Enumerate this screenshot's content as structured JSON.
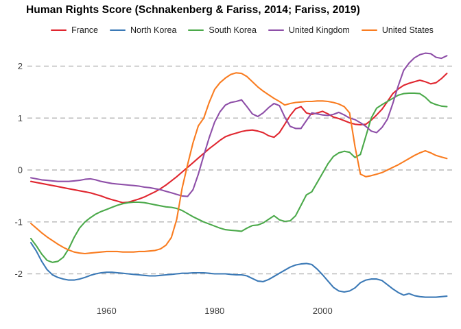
{
  "title": "Human Rights Score (Schnakenberg & Fariss, 2014; Fariss, 2019)",
  "chart_data": {
    "type": "line",
    "x_start_year": 1946,
    "x_step": 1,
    "xlabel": "",
    "ylabel": "",
    "xticks": [
      1960,
      1980,
      2000
    ],
    "xtick_labels": [
      "1960",
      "1980",
      "2000"
    ],
    "yticks": [
      2,
      1,
      0,
      -1,
      -2
    ],
    "ytick_labels": [
      "2",
      "1",
      "0",
      "-1",
      "-2"
    ],
    "ylim": [
      -2.6,
      2.4
    ],
    "grid": "horizontal-dashed",
    "grid_color": "#b9b9b9",
    "legend_position": "top",
    "series": [
      {
        "name": "France",
        "color": "#e0262f",
        "values": [
          -0.22,
          -0.24,
          -0.26,
          -0.28,
          -0.3,
          -0.32,
          -0.34,
          -0.36,
          -0.38,
          -0.4,
          -0.42,
          -0.44,
          -0.47,
          -0.5,
          -0.54,
          -0.57,
          -0.6,
          -0.63,
          -0.62,
          -0.59,
          -0.56,
          -0.52,
          -0.47,
          -0.42,
          -0.36,
          -0.29,
          -0.21,
          -0.13,
          -0.04,
          0.05,
          0.14,
          0.23,
          0.32,
          0.41,
          0.49,
          0.57,
          0.64,
          0.68,
          0.71,
          0.74,
          0.76,
          0.77,
          0.75,
          0.72,
          0.66,
          0.63,
          0.72,
          0.88,
          1.05,
          1.18,
          1.22,
          1.1,
          1.07,
          1.1,
          1.13,
          1.08,
          1.02,
          0.99,
          0.95,
          0.91,
          0.88,
          0.87,
          0.88,
          0.96,
          1.06,
          1.17,
          1.32,
          1.47,
          1.56,
          1.63,
          1.67,
          1.7,
          1.73,
          1.7,
          1.66,
          1.68,
          1.76,
          1.86
        ]
      },
      {
        "name": "North Korea",
        "color": "#3b79b6",
        "values": [
          -1.4,
          -1.56,
          -1.76,
          -1.92,
          -2.02,
          -2.07,
          -2.1,
          -2.12,
          -2.12,
          -2.1,
          -2.07,
          -2.03,
          -2.0,
          -1.98,
          -1.97,
          -1.97,
          -1.98,
          -1.99,
          -2.0,
          -2.01,
          -2.02,
          -2.03,
          -2.04,
          -2.04,
          -2.03,
          -2.02,
          -2.01,
          -2.0,
          -1.99,
          -1.99,
          -1.98,
          -1.98,
          -1.98,
          -1.99,
          -2.0,
          -2.0,
          -2.0,
          -2.01,
          -2.02,
          -2.02,
          -2.04,
          -2.09,
          -2.14,
          -2.15,
          -2.11,
          -2.05,
          -1.99,
          -1.93,
          -1.87,
          -1.83,
          -1.81,
          -1.8,
          -1.82,
          -1.91,
          -2.02,
          -2.14,
          -2.26,
          -2.33,
          -2.35,
          -2.33,
          -2.27,
          -2.17,
          -2.12,
          -2.1,
          -2.1,
          -2.13,
          -2.21,
          -2.29,
          -2.36,
          -2.41,
          -2.38,
          -2.42,
          -2.44,
          -2.45,
          -2.45,
          -2.45,
          -2.44,
          -2.43
        ]
      },
      {
        "name": "South Korea",
        "color": "#4ba94a",
        "values": [
          -1.32,
          -1.46,
          -1.62,
          -1.74,
          -1.78,
          -1.76,
          -1.68,
          -1.52,
          -1.3,
          -1.12,
          -1.0,
          -0.92,
          -0.85,
          -0.8,
          -0.76,
          -0.72,
          -0.68,
          -0.65,
          -0.63,
          -0.62,
          -0.62,
          -0.63,
          -0.65,
          -0.67,
          -0.69,
          -0.71,
          -0.72,
          -0.74,
          -0.78,
          -0.84,
          -0.9,
          -0.95,
          -1.0,
          -1.04,
          -1.08,
          -1.12,
          -1.15,
          -1.16,
          -1.17,
          -1.18,
          -1.12,
          -1.07,
          -1.06,
          -1.02,
          -0.95,
          -0.88,
          -0.96,
          -0.99,
          -0.98,
          -0.88,
          -0.68,
          -0.48,
          -0.42,
          -0.24,
          -0.06,
          0.12,
          0.26,
          0.33,
          0.36,
          0.34,
          0.24,
          0.3,
          0.65,
          1.0,
          1.19,
          1.26,
          1.32,
          1.38,
          1.44,
          1.47,
          1.48,
          1.48,
          1.47,
          1.4,
          1.3,
          1.26,
          1.23,
          1.22
        ]
      },
      {
        "name": "United Kingdom",
        "color": "#8e4fa8",
        "values": [
          -0.15,
          -0.17,
          -0.19,
          -0.2,
          -0.21,
          -0.22,
          -0.22,
          -0.22,
          -0.21,
          -0.2,
          -0.18,
          -0.17,
          -0.19,
          -0.22,
          -0.24,
          -0.26,
          -0.27,
          -0.28,
          -0.29,
          -0.3,
          -0.31,
          -0.33,
          -0.34,
          -0.36,
          -0.38,
          -0.41,
          -0.44,
          -0.47,
          -0.5,
          -0.51,
          -0.38,
          -0.08,
          0.28,
          0.62,
          0.92,
          1.12,
          1.25,
          1.3,
          1.32,
          1.35,
          1.22,
          1.08,
          1.03,
          1.1,
          1.2,
          1.28,
          1.24,
          1.02,
          0.84,
          0.8,
          0.8,
          0.95,
          1.1,
          1.08,
          1.06,
          1.05,
          1.07,
          1.11,
          1.06,
          1.0,
          0.97,
          0.91,
          0.84,
          0.75,
          0.72,
          0.82,
          0.98,
          1.28,
          1.62,
          1.92,
          2.06,
          2.16,
          2.22,
          2.25,
          2.24,
          2.17,
          2.15,
          2.2
        ]
      },
      {
        "name": "United States",
        "color": "#f97c20",
        "values": [
          -1.03,
          -1.12,
          -1.21,
          -1.29,
          -1.36,
          -1.43,
          -1.49,
          -1.54,
          -1.58,
          -1.6,
          -1.61,
          -1.6,
          -1.59,
          -1.58,
          -1.57,
          -1.57,
          -1.57,
          -1.58,
          -1.58,
          -1.58,
          -1.57,
          -1.57,
          -1.56,
          -1.55,
          -1.52,
          -1.45,
          -1.3,
          -0.95,
          -0.35,
          0.1,
          0.52,
          0.85,
          1.0,
          1.3,
          1.55,
          1.68,
          1.77,
          1.84,
          1.87,
          1.86,
          1.8,
          1.7,
          1.6,
          1.52,
          1.45,
          1.38,
          1.32,
          1.25,
          1.28,
          1.3,
          1.31,
          1.32,
          1.32,
          1.33,
          1.33,
          1.32,
          1.3,
          1.27,
          1.22,
          1.1,
          0.45,
          -0.08,
          -0.13,
          -0.11,
          -0.08,
          -0.05,
          0.0,
          0.05,
          0.1,
          0.16,
          0.22,
          0.28,
          0.33,
          0.37,
          0.33,
          0.28,
          0.25,
          0.22
        ]
      }
    ]
  }
}
